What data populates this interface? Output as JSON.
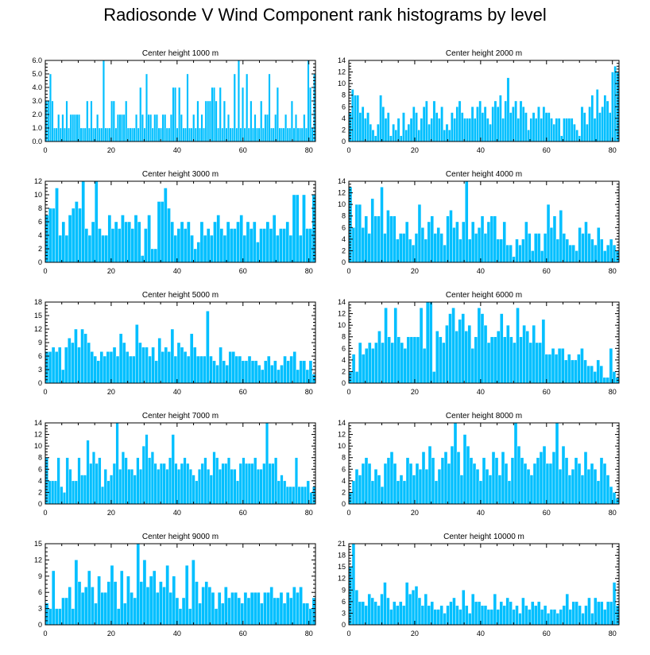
{
  "title": "Radiosonde V Wind Component rank histograms by level",
  "colors": {
    "bar": "#00bfff",
    "axis": "#000000"
  },
  "chart_data": [
    {
      "type": "bar",
      "title": "Center height 1000 m",
      "xlim": [
        0,
        82
      ],
      "ylim": [
        0,
        6
      ],
      "yticks": [
        "0.0",
        "1.0",
        "2.0",
        "3.0",
        "4.0",
        "5.0",
        "6.0"
      ],
      "ytick_values": [
        0,
        1,
        2,
        3,
        4,
        5,
        6
      ],
      "xticks": [
        0,
        20,
        40,
        60,
        80
      ],
      "values": [
        3,
        3,
        5,
        3,
        1,
        1,
        2,
        1,
        2,
        1,
        3,
        1,
        2,
        2,
        2,
        2,
        2,
        1,
        1,
        1,
        3,
        1,
        3,
        1,
        1,
        2,
        1,
        1,
        6,
        1,
        1,
        1,
        3,
        3,
        1,
        2,
        2,
        2,
        2,
        3,
        1,
        1,
        1,
        1,
        2,
        1,
        4,
        2,
        1,
        5,
        2,
        2,
        1,
        2,
        2,
        1,
        1,
        2,
        2,
        1,
        1,
        2,
        4,
        4,
        1,
        4,
        2,
        1,
        1,
        5,
        1,
        1,
        2,
        1,
        3,
        1,
        2,
        1,
        3,
        3,
        3,
        4,
        4,
        3,
        1,
        4,
        1,
        3,
        1,
        2,
        1,
        1,
        5,
        1,
        6,
        1,
        4,
        1,
        5,
        1,
        3,
        1,
        2,
        1,
        1,
        3,
        1,
        2,
        2,
        5,
        1,
        1,
        2,
        4,
        1,
        1,
        1,
        2,
        1,
        1,
        3,
        1,
        2,
        1,
        1,
        1,
        2,
        1,
        6,
        4,
        1,
        5
      ]
    },
    {
      "type": "bar",
      "title": "Center height 2000 m",
      "xlim": [
        0,
        82
      ],
      "ylim": [
        0,
        14
      ],
      "yticks": [
        "0",
        "2",
        "4",
        "6",
        "8",
        "10",
        "12",
        "14"
      ],
      "ytick_values": [
        0,
        2,
        4,
        6,
        8,
        10,
        12,
        14
      ],
      "xticks": [
        0,
        20,
        40,
        60,
        80
      ],
      "values": [
        5,
        9,
        8,
        8,
        5,
        6,
        4,
        5,
        3,
        2,
        1,
        3,
        8,
        6,
        4,
        5,
        1,
        3,
        2,
        4,
        1,
        5,
        2,
        3,
        4,
        6,
        5,
        2,
        4,
        6,
        7,
        3,
        4,
        7,
        5,
        4,
        6,
        2,
        3,
        2,
        5,
        4,
        6,
        7,
        5,
        4,
        4,
        4,
        6,
        4,
        6,
        7,
        5,
        6,
        4,
        3,
        6,
        7,
        6,
        8,
        4,
        7,
        11,
        5,
        6,
        7,
        4,
        7,
        6,
        5,
        2,
        4,
        5,
        4,
        6,
        4,
        6,
        5,
        5,
        4,
        3,
        4,
        4,
        1,
        4,
        4,
        4,
        4,
        3,
        2,
        1,
        6,
        5,
        3,
        6,
        8,
        4,
        9,
        5,
        6,
        8,
        7,
        5,
        12,
        13,
        12
      ]
    },
    {
      "type": "bar",
      "title": "Center height 3000 m",
      "xlim": [
        0,
        82
      ],
      "ylim": [
        0,
        12
      ],
      "yticks": [
        "0",
        "2",
        "4",
        "6",
        "8",
        "10",
        "12"
      ],
      "ytick_values": [
        0,
        2,
        4,
        6,
        8,
        10,
        12
      ],
      "xticks": [
        0,
        20,
        40,
        60,
        80
      ],
      "values": [
        7,
        8,
        8,
        11,
        4,
        6,
        4,
        7,
        8,
        9,
        8,
        12,
        5,
        4,
        6,
        12,
        5,
        4,
        4,
        7,
        5,
        6,
        5,
        7,
        6,
        6,
        5,
        7,
        6,
        1,
        5,
        7,
        2,
        2,
        9,
        9,
        11,
        8,
        6,
        4,
        5,
        6,
        5,
        6,
        4,
        2,
        3,
        6,
        4,
        5,
        4,
        6,
        7,
        5,
        4,
        6,
        5,
        5,
        6,
        7,
        4,
        6,
        5,
        6,
        3,
        5,
        5,
        6,
        5,
        7,
        4,
        5,
        5,
        6,
        4,
        10,
        10,
        4,
        10,
        5,
        5,
        10
      ]
    },
    {
      "type": "bar",
      "title": "Center height 4000 m",
      "xlim": [
        0,
        82
      ],
      "ylim": [
        0,
        14
      ],
      "yticks": [
        "0",
        "2",
        "4",
        "6",
        "8",
        "10",
        "12",
        "14"
      ],
      "ytick_values": [
        0,
        2,
        4,
        6,
        8,
        10,
        12,
        14
      ],
      "xticks": [
        0,
        20,
        40,
        60,
        80
      ],
      "values": [
        13,
        6,
        10,
        10,
        6,
        8,
        5,
        11,
        8,
        8,
        13,
        5,
        9,
        8,
        8,
        4,
        5,
        5,
        7,
        4,
        3,
        5,
        10,
        6,
        4,
        7,
        8,
        5,
        6,
        5,
        3,
        8,
        9,
        6,
        7,
        4,
        7,
        14,
        4,
        7,
        5,
        6,
        8,
        5,
        7,
        8,
        8,
        4,
        4,
        7,
        3,
        3,
        1,
        4,
        3,
        4,
        7,
        5,
        2,
        5,
        5,
        2,
        5,
        10,
        6,
        8,
        4,
        9,
        5,
        4,
        3,
        3,
        2,
        6,
        5,
        7,
        5,
        4,
        3,
        6,
        4,
        2,
        3,
        4,
        3,
        2
      ]
    },
    {
      "type": "bar",
      "title": "Center height 5000 m",
      "xlim": [
        0,
        82
      ],
      "ylim": [
        0,
        18
      ],
      "yticks": [
        "0",
        "3",
        "6",
        "9",
        "12",
        "15",
        "18"
      ],
      "ytick_values": [
        0,
        3,
        6,
        9,
        12,
        15,
        18
      ],
      "xticks": [
        0,
        20,
        40,
        60,
        80
      ],
      "values": [
        7,
        7,
        8,
        7,
        8,
        3,
        8,
        10,
        9,
        12,
        8,
        12,
        11,
        9,
        7,
        6,
        5,
        7,
        6,
        7,
        7,
        8,
        6,
        11,
        9,
        7,
        6,
        6,
        13,
        9,
        8,
        8,
        6,
        8,
        5,
        10,
        7,
        8,
        7,
        12,
        6,
        9,
        8,
        7,
        6,
        11,
        8,
        6,
        6,
        6,
        16,
        6,
        5,
        4,
        8,
        5,
        4,
        7,
        7,
        6,
        6,
        5,
        5,
        6,
        5,
        5,
        4,
        3,
        5,
        6,
        4,
        5,
        3,
        4,
        6,
        5,
        6,
        7,
        3,
        5,
        5,
        3,
        5,
        2
      ]
    },
    {
      "type": "bar",
      "title": "Center height 6000 m",
      "xlim": [
        0,
        82
      ],
      "ylim": [
        0,
        14
      ],
      "yticks": [
        "0",
        "2",
        "4",
        "6",
        "8",
        "10",
        "12",
        "14"
      ],
      "ytick_values": [
        0,
        2,
        4,
        6,
        8,
        10,
        12,
        14
      ],
      "xticks": [
        0,
        20,
        40,
        60,
        80
      ],
      "values": [
        2,
        5,
        2,
        7,
        5,
        6,
        7,
        6,
        7,
        9,
        7,
        13,
        8,
        7,
        13,
        8,
        7,
        6,
        8,
        8,
        8,
        8,
        13,
        6,
        14,
        14,
        2,
        9,
        8,
        7,
        10,
        12,
        13,
        9,
        11,
        12,
        9,
        10,
        6,
        8,
        13,
        12,
        10,
        7,
        8,
        8,
        9,
        12,
        8,
        10,
        8,
        7,
        13,
        8,
        10,
        9,
        7,
        10,
        7,
        7,
        11,
        5,
        5,
        6,
        5,
        6,
        6,
        4,
        5,
        4,
        4,
        5,
        6,
        4,
        3,
        3,
        2,
        4,
        3,
        1,
        1,
        6,
        2,
        1
      ]
    },
    {
      "type": "bar",
      "title": "Center height 7000 m",
      "xlim": [
        0,
        82
      ],
      "ylim": [
        0,
        14
      ],
      "yticks": [
        "0",
        "2",
        "4",
        "6",
        "8",
        "10",
        "12",
        "14"
      ],
      "ytick_values": [
        0,
        2,
        4,
        6,
        8,
        10,
        12,
        14
      ],
      "xticks": [
        0,
        20,
        40,
        60,
        80
      ],
      "values": [
        8,
        4,
        4,
        4,
        8,
        3,
        2,
        8,
        6,
        4,
        4,
        8,
        5,
        5,
        11,
        7,
        9,
        7,
        8,
        3,
        6,
        4,
        5,
        7,
        14,
        6,
        9,
        8,
        6,
        6,
        5,
        8,
        6,
        10,
        12,
        8,
        9,
        7,
        6,
        7,
        7,
        6,
        8,
        12,
        7,
        6,
        7,
        8,
        7,
        6,
        5,
        4,
        6,
        7,
        8,
        6,
        5,
        9,
        8,
        6,
        7,
        7,
        8,
        6,
        6,
        4,
        7,
        8,
        7,
        7,
        7,
        8,
        6,
        6,
        7,
        14,
        7,
        7,
        8,
        4,
        5,
        4,
        3,
        3,
        3,
        8,
        3,
        3,
        3,
        4,
        2,
        3
      ]
    },
    {
      "type": "bar",
      "title": "Center height 8000 m",
      "xlim": [
        0,
        82
      ],
      "ylim": [
        0,
        14
      ],
      "yticks": [
        "0",
        "2",
        "4",
        "6",
        "8",
        "10",
        "12",
        "14"
      ],
      "ytick_values": [
        0,
        2,
        4,
        6,
        8,
        10,
        12,
        14
      ],
      "xticks": [
        0,
        20,
        40,
        60,
        80
      ],
      "values": [
        2,
        4,
        6,
        5,
        7,
        8,
        7,
        4,
        6,
        5,
        3,
        7,
        8,
        9,
        7,
        4,
        5,
        4,
        8,
        7,
        5,
        7,
        6,
        9,
        6,
        10,
        8,
        4,
        6,
        8,
        9,
        7,
        10,
        14,
        9,
        5,
        12,
        10,
        8,
        7,
        6,
        4,
        8,
        6,
        5,
        9,
        8,
        5,
        9,
        7,
        4,
        8,
        14,
        10,
        8,
        7,
        6,
        5,
        7,
        8,
        9,
        10,
        7,
        7,
        9,
        14,
        6,
        10,
        8,
        5,
        6,
        8,
        7,
        5,
        9,
        6,
        7,
        6,
        4,
        8,
        7,
        5,
        3,
        2,
        1
      ]
    },
    {
      "type": "bar",
      "title": "Center height 9000 m",
      "xlim": [
        0,
        82
      ],
      "ylim": [
        0,
        15
      ],
      "yticks": [
        "0",
        "3",
        "6",
        "9",
        "12",
        "15"
      ],
      "ytick_values": [
        0,
        3,
        6,
        9,
        12,
        15
      ],
      "xticks": [
        0,
        20,
        40,
        60,
        80
      ],
      "values": [
        4,
        3,
        10,
        3,
        3,
        5,
        5,
        7,
        3,
        12,
        8,
        6,
        7,
        10,
        7,
        4,
        9,
        6,
        6,
        8,
        11,
        8,
        3,
        10,
        4,
        9,
        6,
        5,
        15,
        8,
        12,
        7,
        9,
        10,
        6,
        8,
        7,
        11,
        6,
        9,
        5,
        3,
        5,
        11,
        3,
        12,
        8,
        4,
        7,
        8,
        7,
        6,
        3,
        6,
        4,
        7,
        5,
        6,
        6,
        5,
        4,
        6,
        5,
        6,
        6,
        6,
        4,
        6,
        6,
        7,
        5,
        5,
        6,
        4,
        6,
        5,
        7,
        6,
        7,
        4,
        4,
        3,
        5
      ]
    },
    {
      "type": "bar",
      "title": "Center height 10000 m",
      "xlim": [
        0,
        82
      ],
      "ylim": [
        0,
        21
      ],
      "yticks": [
        "0",
        "3",
        "6",
        "9",
        "12",
        "15",
        "18",
        "21"
      ],
      "ytick_values": [
        0,
        3,
        6,
        9,
        12,
        15,
        18,
        21
      ],
      "xticks": [
        0,
        20,
        40,
        60,
        80
      ],
      "values": [
        15,
        21,
        9,
        6,
        6,
        5,
        8,
        7,
        6,
        5,
        8,
        11,
        7,
        4,
        6,
        5,
        6,
        5,
        11,
        8,
        9,
        10,
        7,
        5,
        8,
        5,
        6,
        4,
        4,
        5,
        3,
        5,
        6,
        7,
        5,
        4,
        9,
        5,
        3,
        8,
        6,
        6,
        5,
        5,
        4,
        4,
        8,
        4,
        6,
        5,
        7,
        6,
        4,
        5,
        3,
        7,
        5,
        4,
        6,
        5,
        6,
        4,
        5,
        3,
        4,
        4,
        3,
        4,
        5,
        8,
        4,
        6,
        6,
        5,
        3,
        5,
        7,
        3,
        7,
        6,
        6,
        4,
        6,
        6,
        11,
        5
      ]
    }
  ]
}
